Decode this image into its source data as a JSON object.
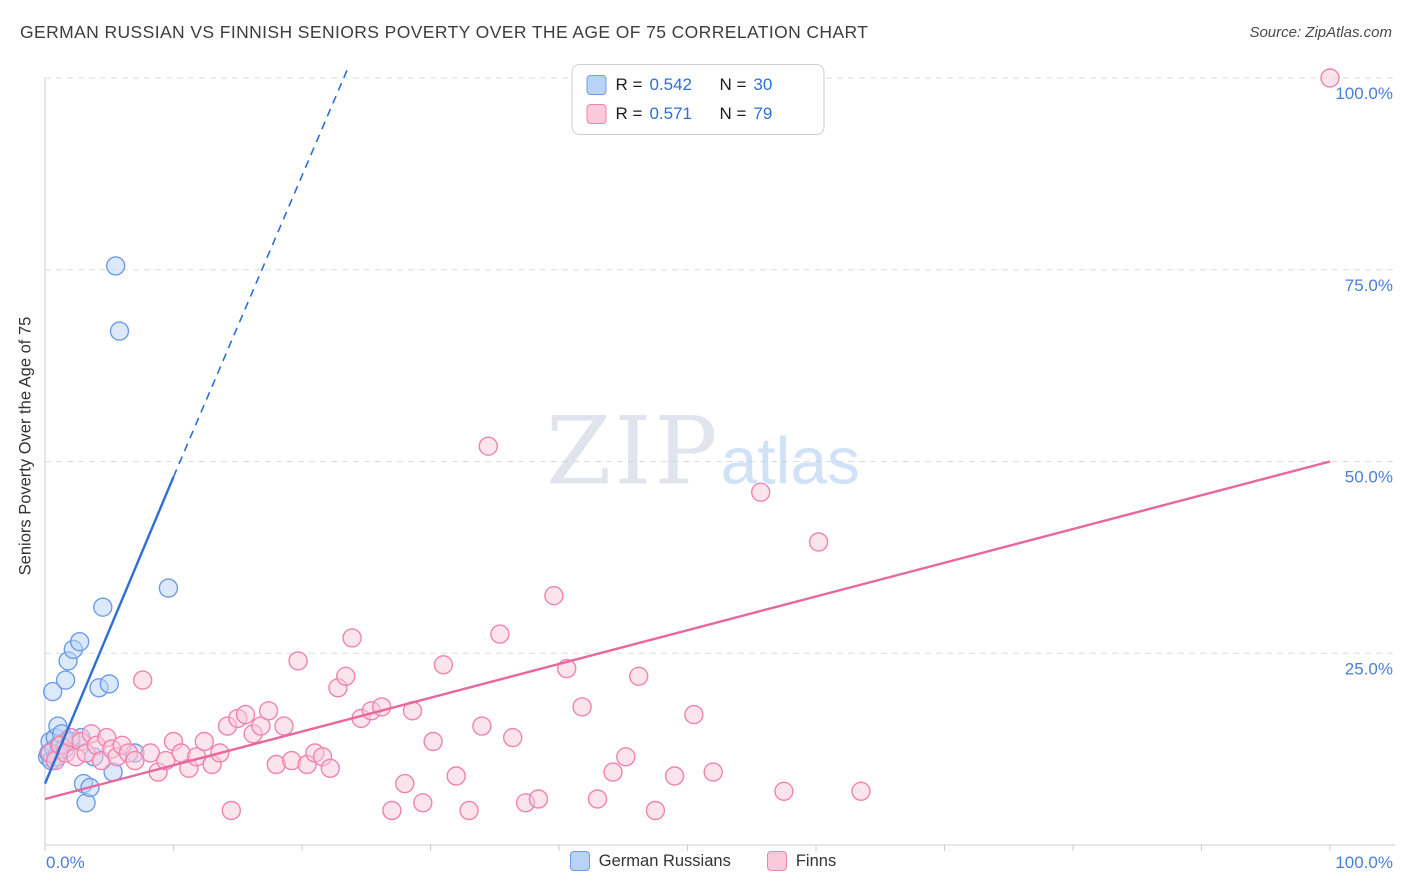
{
  "header": {
    "title": "GERMAN RUSSIAN VS FINNISH SENIORS POVERTY OVER THE AGE OF 75 CORRELATION CHART",
    "source": "Source: ZipAtlas.com"
  },
  "watermark": {
    "zip": "ZIP",
    "atlas": "atlas"
  },
  "legend_box": {
    "rows": [
      {
        "r_label": "R =",
        "r_value": "0.542",
        "n_label": "N =",
        "n_value": "30"
      },
      {
        "r_label": "R =",
        "r_value": "0.571",
        "n_label": "N =",
        "n_value": "79"
      }
    ]
  },
  "bottom_legend": {
    "items": [
      {
        "label": "German Russians"
      },
      {
        "label": "Finns"
      }
    ]
  },
  "axes": {
    "y_title": "Seniors Poverty Over the Age of 75",
    "x_min_label": "0.0%",
    "x_max_label": "100.0%",
    "y_tick_labels": [
      "25.0%",
      "50.0%",
      "75.0%",
      "100.0%"
    ],
    "y_gridlines": [
      25,
      50,
      75,
      100
    ]
  },
  "colors": {
    "blue_stroke": "#6c9ce8",
    "blue_fill": "#b9d3f7",
    "pink_stroke": "#f083ae",
    "pink_fill": "#fac9da",
    "trend_blue": "#2e6fd4",
    "trend_pink": "#e8679e",
    "axis_text_blue": "#4a7fd6",
    "grid": "#dadde2",
    "axis_line": "#c9cdd3",
    "title_text": "#3d3d3d"
  },
  "chart_data": {
    "type": "scatter",
    "title": "GERMAN RUSSIAN VS FINNISH SENIORS POVERTY OVER THE AGE OF 75 CORRELATION CHART",
    "ylabel": "Seniors Poverty Over the Age of 75",
    "xlim": [
      0,
      100
    ],
    "ylim": [
      0,
      100
    ],
    "x_unit": "%",
    "y_unit": "%",
    "grid": "horizontal-dashed",
    "legend_position": "bottom",
    "series": [
      {
        "name": "German Russians",
        "R": 0.542,
        "N": 30,
        "stroke": "#6c9ce8",
        "fill": "#b9d3f7",
        "points": [
          [
            0.2,
            11.5
          ],
          [
            0.3,
            12
          ],
          [
            0.4,
            13.5
          ],
          [
            0.5,
            11
          ],
          [
            0.6,
            20
          ],
          [
            0.7,
            12.5
          ],
          [
            0.8,
            14
          ],
          [
            0.9,
            11.5
          ],
          [
            1.0,
            15.5
          ],
          [
            1.1,
            13
          ],
          [
            1.3,
            14.5
          ],
          [
            1.5,
            12.5
          ],
          [
            1.6,
            21.5
          ],
          [
            1.8,
            24
          ],
          [
            2.0,
            13.5
          ],
          [
            2.2,
            25.5
          ],
          [
            2.7,
            26.5
          ],
          [
            2.8,
            14
          ],
          [
            3.0,
            8
          ],
          [
            3.2,
            5.5
          ],
          [
            3.5,
            7.5
          ],
          [
            3.8,
            11.5
          ],
          [
            4.2,
            20.5
          ],
          [
            4.5,
            31
          ],
          [
            5.0,
            21
          ],
          [
            5.3,
            9.5
          ],
          [
            5.5,
            75.5
          ],
          [
            5.8,
            67
          ],
          [
            7.0,
            12
          ],
          [
            9.6,
            33.5
          ]
        ]
      },
      {
        "name": "Finns",
        "R": 0.571,
        "N": 79,
        "stroke": "#f083ae",
        "fill": "#fac9da",
        "points": [
          [
            0.4,
            12
          ],
          [
            0.8,
            11
          ],
          [
            1.2,
            13
          ],
          [
            1.6,
            12
          ],
          [
            2.0,
            14
          ],
          [
            2.4,
            11.5
          ],
          [
            2.8,
            13.5
          ],
          [
            3.2,
            12
          ],
          [
            3.6,
            14.5
          ],
          [
            4.0,
            13
          ],
          [
            4.4,
            11
          ],
          [
            4.8,
            14
          ],
          [
            5.2,
            12.5
          ],
          [
            5.6,
            11.5
          ],
          [
            6.0,
            13
          ],
          [
            6.5,
            12
          ],
          [
            7.0,
            11
          ],
          [
            7.6,
            21.5
          ],
          [
            8.2,
            12
          ],
          [
            8.8,
            9.5
          ],
          [
            9.4,
            11
          ],
          [
            10.0,
            13.5
          ],
          [
            10.6,
            12
          ],
          [
            11.2,
            10
          ],
          [
            11.8,
            11.5
          ],
          [
            12.4,
            13.5
          ],
          [
            13.0,
            10.5
          ],
          [
            13.6,
            12
          ],
          [
            14.2,
            15.5
          ],
          [
            14.5,
            4.5
          ],
          [
            15.0,
            16.5
          ],
          [
            15.6,
            17
          ],
          [
            16.2,
            14.5
          ],
          [
            16.8,
            15.5
          ],
          [
            17.4,
            17.5
          ],
          [
            18.0,
            10.5
          ],
          [
            18.6,
            15.5
          ],
          [
            19.2,
            11
          ],
          [
            19.7,
            24
          ],
          [
            20.4,
            10.5
          ],
          [
            21.0,
            12
          ],
          [
            21.6,
            11.5
          ],
          [
            22.2,
            10
          ],
          [
            22.8,
            20.5
          ],
          [
            23.4,
            22
          ],
          [
            23.9,
            27
          ],
          [
            24.6,
            16.5
          ],
          [
            25.4,
            17.5
          ],
          [
            26.2,
            18
          ],
          [
            27.0,
            4.5
          ],
          [
            28.0,
            8
          ],
          [
            28.6,
            17.5
          ],
          [
            29.4,
            5.5
          ],
          [
            30.2,
            13.5
          ],
          [
            31.0,
            23.5
          ],
          [
            32.0,
            9
          ],
          [
            33.0,
            4.5
          ],
          [
            34.0,
            15.5
          ],
          [
            34.5,
            52
          ],
          [
            35.4,
            27.5
          ],
          [
            36.4,
            14
          ],
          [
            37.4,
            5.5
          ],
          [
            38.4,
            6
          ],
          [
            39.6,
            32.5
          ],
          [
            40.6,
            23
          ],
          [
            41.8,
            18
          ],
          [
            43.0,
            6
          ],
          [
            44.2,
            9.5
          ],
          [
            45.2,
            11.5
          ],
          [
            46.2,
            22
          ],
          [
            47.5,
            4.5
          ],
          [
            49.0,
            9
          ],
          [
            50.5,
            17
          ],
          [
            52.0,
            9.5
          ],
          [
            55.7,
            46
          ],
          [
            57.5,
            7
          ],
          [
            60.2,
            39.5
          ],
          [
            63.5,
            7
          ],
          [
            100,
            100
          ]
        ]
      }
    ],
    "trend_lines": [
      {
        "series": "German Russians",
        "color": "#2e6fd4",
        "segments": [
          {
            "from": [
              0,
              8
            ],
            "to": [
              10,
              48
            ],
            "dashed": false
          },
          {
            "from": [
              10,
              48
            ],
            "to": [
              23.5,
              101
            ],
            "dashed": true
          }
        ]
      },
      {
        "series": "Finns",
        "color": "#e8679e",
        "segments": [
          {
            "from": [
              0,
              6
            ],
            "to": [
              100,
              50
            ],
            "dashed": false
          }
        ]
      }
    ]
  }
}
